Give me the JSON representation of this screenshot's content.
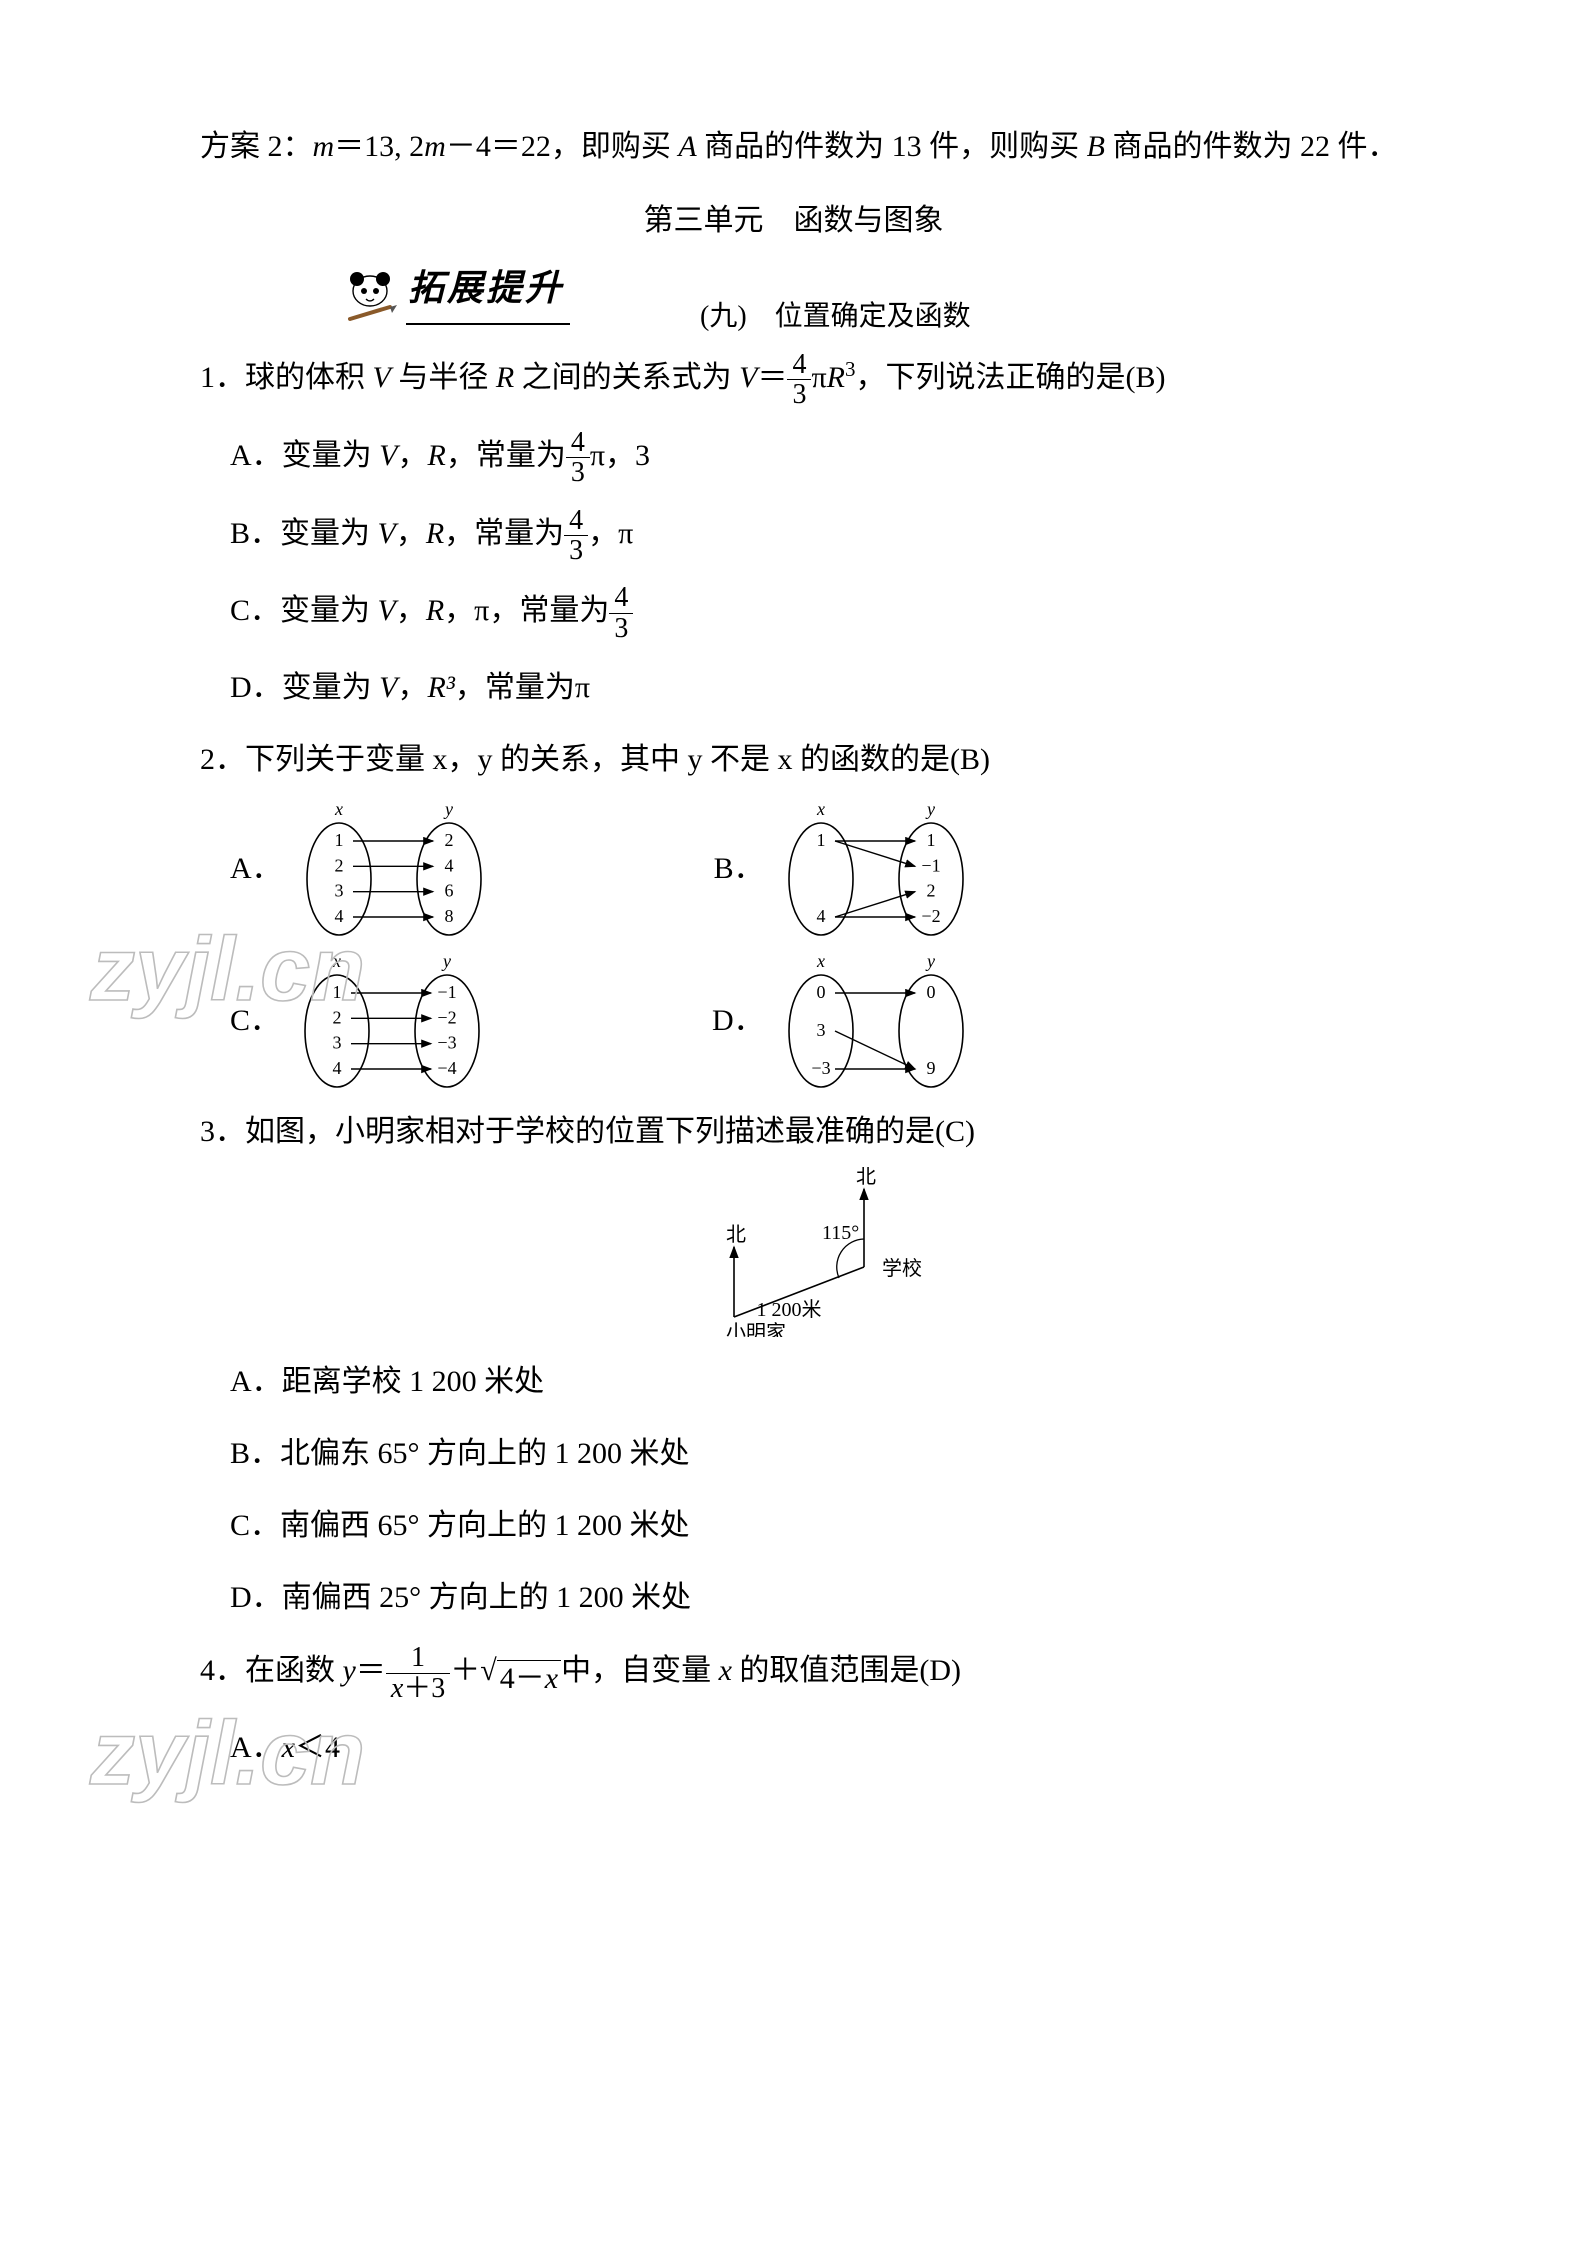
{
  "intro": {
    "line1_a": "方案 2：",
    "line1_b": "＝13, 2",
    "line1_c": "－4＝22，即购买 ",
    "line1_d": " 商品的件数为 13 件，则购买 ",
    "line1_e": " 商品的件数为 22 件．",
    "m": "m",
    "A": "A",
    "B": "B"
  },
  "unit_title": "第三单元　函数与图象",
  "banner": {
    "text": "拓展提升",
    "sub": "(九)　位置确定及函数"
  },
  "q1": {
    "stem_a": "1．球的体积 ",
    "V": "V",
    "stem_b": " 与半径 ",
    "R": "R",
    "stem_c": " 之间的关系式为 ",
    "eq_lhs": "V",
    "eq_eq": "＝",
    "frac_num": "4",
    "frac_den": "3",
    "pi": "π",
    "R3": "R",
    "cube": "3",
    "stem_d": "，下列说法正确的是(B)",
    "A_a": "A．变量为 ",
    "A_b": "，",
    "A_c": "，常量为",
    "A_d": "π，3",
    "B_a": "B．变量为 ",
    "B_b": "，",
    "B_c": "，常量为",
    "B_d": "，π",
    "C_a": "C．变量为 ",
    "C_b": "，",
    "C_c": "，π，常量为",
    "D_a": "D．变量为 ",
    "D_b": "，",
    "D_c": "，常量为π",
    "R3_label": "R³"
  },
  "q2": {
    "stem": "2．下列关于变量 x，y 的关系，其中 y 不是 x 的函数的是(B)",
    "labels": {
      "A": "A．",
      "B": "B．",
      "C": "C．",
      "D": "D．"
    },
    "mapA": {
      "xlab": "x",
      "ylab": "y",
      "left": [
        "1",
        "2",
        "3",
        "4"
      ],
      "right": [
        "2",
        "4",
        "6",
        "8"
      ],
      "edges": [
        [
          0,
          0
        ],
        [
          1,
          1
        ],
        [
          2,
          2
        ],
        [
          3,
          3
        ]
      ]
    },
    "mapB": {
      "xlab": "x",
      "ylab": "y",
      "left": [
        "1",
        "4"
      ],
      "right": [
        "1",
        "−1",
        "2",
        "−2"
      ],
      "edges": [
        [
          0,
          0
        ],
        [
          0,
          1
        ],
        [
          1,
          2
        ],
        [
          1,
          3
        ]
      ]
    },
    "mapC": {
      "xlab": "x",
      "ylab": "y",
      "left": [
        "1",
        "2",
        "3",
        "4"
      ],
      "right": [
        "−1",
        "−2",
        "−3",
        "−4"
      ],
      "edges": [
        [
          0,
          0
        ],
        [
          1,
          1
        ],
        [
          2,
          2
        ],
        [
          3,
          3
        ]
      ]
    },
    "mapD": {
      "xlab": "x",
      "ylab": "y",
      "left": [
        "0",
        "3",
        "−3"
      ],
      "right": [
        "0",
        "9"
      ],
      "edges": [
        [
          0,
          0
        ],
        [
          1,
          1
        ],
        [
          2,
          1
        ]
      ]
    }
  },
  "q3": {
    "stem": "3．如图，小明家相对于学校的位置下列描述最准确的是(C)",
    "A": "A．距离学校 1 200 米处",
    "B": "B．北偏东 65°  方向上的 1 200 米处",
    "C": "C．南偏西 65°  方向上的 1 200 米处",
    "D": "D．南偏西 25°  方向上的 1 200 米处",
    "diagram": {
      "north": "北",
      "angle": "115°",
      "school": "学校",
      "dist": "1 200米",
      "home": "小明家"
    }
  },
  "q4": {
    "stem_a": "4．在函数 ",
    "y": "y",
    "eq": "＝",
    "frac_num": "1",
    "frac_den_a": "x",
    "frac_den_b": "＋3",
    "plus": "＋",
    "sqrt_a": "4－",
    "sqrt_x": "x",
    "stem_b": "中，自变量 ",
    "x": "x",
    "stem_c": " 的取值范围是(D)",
    "A_a": "A．",
    "A_x": "x",
    "A_b": "＜4"
  },
  "watermark": "zyjl.cn",
  "colors": {
    "text": "#000000",
    "bg": "#ffffff",
    "wm": "#bcbcbc"
  }
}
